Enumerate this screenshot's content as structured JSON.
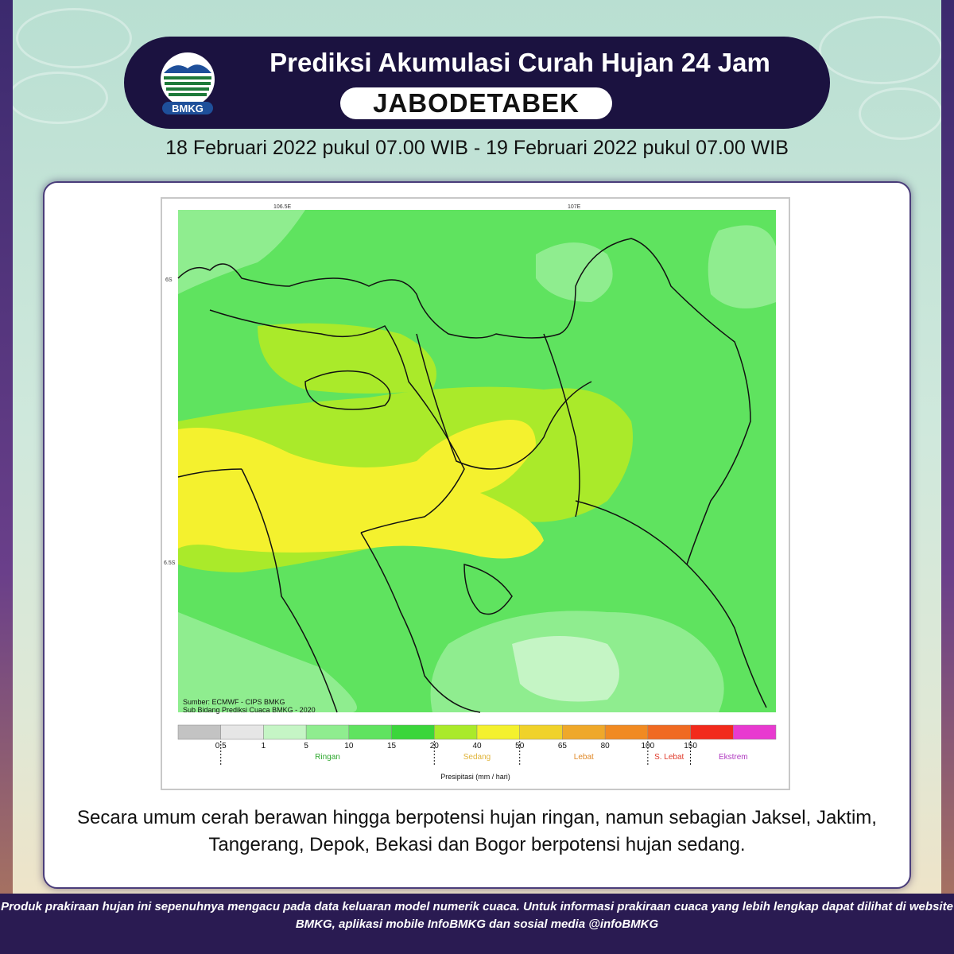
{
  "header": {
    "title": "Prediksi Akumulasi Curah Hujan 24 Jam",
    "region": "JABODETABEK",
    "logo_text": "BMKG"
  },
  "period": "18 Februari 2022 pukul 07.00 WIB - 19 Februari 2022 pukul 07.00 WIB",
  "map": {
    "lon_ticks": [
      "106.5E",
      "107E"
    ],
    "lat_ticks": [
      "6S",
      "6.5S"
    ],
    "source_line1": "Sumber: ECMWF - CIPS BMKG",
    "source_line2": "Sub Bidang Prediksi Cuaca BMKG - 2020",
    "legend": {
      "values": [
        "0.5",
        "1",
        "5",
        "10",
        "15",
        "20",
        "40",
        "50",
        "65",
        "80",
        "100",
        "150"
      ],
      "colors": [
        "#c3c3c3",
        "#e6e6e6",
        "#c5f5c5",
        "#8fed8f",
        "#5fe35f",
        "#3bd63b",
        "#aaea2a",
        "#f4f12e",
        "#f0d22a",
        "#efa82a",
        "#f18a22",
        "#f06a22",
        "#f22a1c",
        "#e83ad0"
      ],
      "categories": [
        {
          "label": "Ringan",
          "color": "#2fa82f"
        },
        {
          "label": "Sedang",
          "color": "#e0b43a"
        },
        {
          "label": "Lebat",
          "color": "#e08a2a"
        },
        {
          "label": "S. Lebat",
          "color": "#e03a2a"
        },
        {
          "label": "Ekstrem",
          "color": "#b03ac0"
        }
      ],
      "axis_label": "Presipitasi (mm / hari)"
    }
  },
  "description": "Secara umum cerah berawan hingga berpotensi hujan ringan, namun sebagian Jaksel, Jaktim, Tangerang, Depok, Bekasi dan Bogor berpotensi hujan sedang.",
  "footer": "Produk prakiraan hujan ini sepenuhnya mengacu pada data keluaran model numerik cuaca. Untuk informasi prakiraan cuaca yang lebih lengkap dapat dilihat di website BMKG, aplikasi mobile InfoBMKG dan sosial media @infoBMKG"
}
